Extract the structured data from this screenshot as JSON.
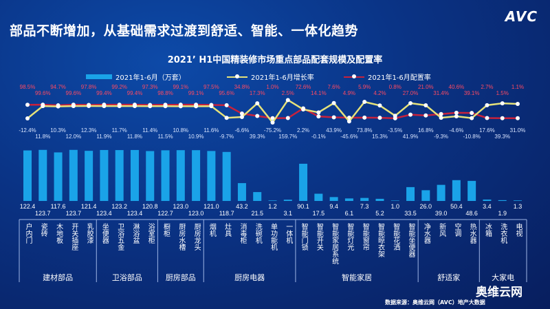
{
  "page": {
    "title": "部品不断增加，从基础需求过渡到舒适、智能、一体化趋势",
    "logo": "AVC",
    "source": "数据来源：奥维云网（AVC）地产大数据",
    "watermark": "奥维云网"
  },
  "colors": {
    "bar": "#1aa3e8",
    "growth": "#e6e27a",
    "config": "#c8223c",
    "background": "#0a3385"
  },
  "chart_data": {
    "type": "bar",
    "title": "2021’ H1中国精装修市场重点部品配套规模及配置率",
    "legend": [
      "2021年1-6月（万套）",
      "2021年1-6月增长率",
      "2021年1-6月配置率"
    ],
    "legend_placement": "top",
    "categories": [
      "户内门",
      "瓷砖",
      "木地板",
      "开关插座",
      "乳胶漆",
      "坐便器",
      "卫浴五金",
      "淋浴盆",
      "浴室柜",
      "橱柜",
      "厨房水槽",
      "厨房龙头",
      "烟机",
      "灶具",
      "消毒柜",
      "洗碗机",
      "单功能机",
      "一体机",
      "智能门锁",
      "智能开关",
      "智能家居系统",
      "智能灯光",
      "智能窗帘",
      "智能晾衣架",
      "智能花洒",
      "智能坐便器",
      "净水器",
      "新风",
      "空调",
      "热水器",
      "冰箱",
      "洗衣机",
      "电视"
    ],
    "groups": [
      {
        "name": "建材部品",
        "count": 5
      },
      {
        "name": "卫浴部品",
        "count": 4
      },
      {
        "name": "厨房部品",
        "count": 3
      },
      {
        "name": "厨房电器",
        "count": 6
      },
      {
        "name": "智能家居",
        "count": 8
      },
      {
        "name": "舒适家",
        "count": 4
      },
      {
        "name": "大家电",
        "count": 3
      }
    ],
    "series": [
      {
        "name": "2021年1-6月（万套）",
        "type": "bar",
        "values": [
          122.4,
          123.7,
          117.6,
          123.7,
          121.4,
          123.4,
          123.2,
          123.4,
          120.8,
          122.7,
          123.0,
          123.0,
          121.0,
          118.7,
          43.2,
          21.5,
          1.2,
          3.1,
          90.1,
          17.5,
          9.4,
          6.1,
          7.3,
          5.2,
          1.0,
          33.5,
          26.0,
          39.0,
          50.4,
          48.6,
          3.4,
          1.9,
          1.3
        ]
      },
      {
        "name": "2021年1-6月增长率",
        "type": "line",
        "unit": "%",
        "values": [
          -12.4,
          11.8,
          10.3,
          12.0,
          12.3,
          11.9,
          11.7,
          11.8,
          11.4,
          11.5,
          10.8,
          10.9,
          11.6,
          -9.7,
          -6.6,
          39.3,
          -75.2,
          159.7,
          2.2,
          -0.1,
          43.9,
          -45.6,
          73.8,
          15.3,
          -3.5,
          41.9,
          16.8,
          -9.3,
          -4.6,
          -10.8,
          17.6,
          39.3,
          31.0
        ]
      },
      {
        "name": "2021年1-6月配置率",
        "type": "line",
        "unit": "%",
        "values": [
          98.5,
          99.6,
          94.7,
          99.6,
          97.8,
          99.4,
          99.2,
          99.4,
          97.3,
          98.8,
          99.1,
          99.1,
          97.5,
          95.6,
          34.8,
          17.3,
          1.0,
          2.5,
          72.6,
          14.1,
          7.6,
          4.9,
          5.9,
          4.2,
          0.8,
          27.0,
          21.0,
          31.4,
          40.6,
          39.1,
          2.7,
          1.5,
          1.1
        ]
      }
    ]
  }
}
